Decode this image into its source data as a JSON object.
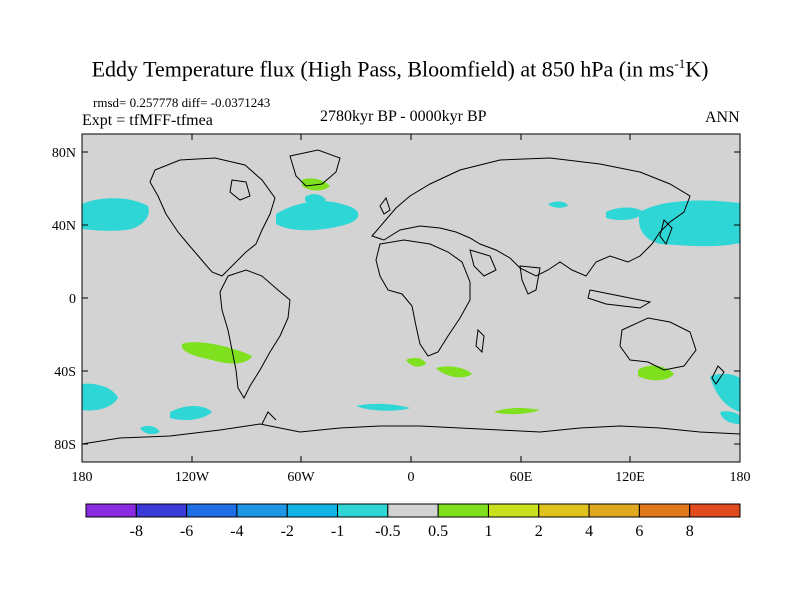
{
  "title_main": "Eddy Temperature flux (High Pass, Bloomfield) at 850 hPa (in ms",
  "title_sup": "-1",
  "title_end": "K)",
  "stats": "rmsd= 0.257778 diff= -0.0371243",
  "experiment": "Expt = tfMFF-tfmea",
  "period": "2780kyr BP - 0000kyr BP",
  "season": "ANN",
  "map": {
    "lat_labels": [
      "80N",
      "40N",
      "0",
      "40S",
      "80S"
    ],
    "lon_labels": [
      "180",
      "120W",
      "60W",
      "0",
      "60E",
      "120E",
      "180"
    ],
    "land_fill": "#d3d3d3",
    "coast_color": "#000000"
  },
  "colorbar": {
    "colors": [
      "#8a2be2",
      "#3a3ad8",
      "#1e6ee6",
      "#1e96e6",
      "#12b4e6",
      "#2fd6d6",
      "#d3d3d3",
      "#7fe01e",
      "#c8e01e",
      "#e0c21e",
      "#e0a81e",
      "#e0781e",
      "#e04a1e"
    ],
    "labels": [
      "-8",
      "-6",
      "-4",
      "-2",
      "-1",
      "-0.5",
      "0.5",
      "1",
      "2",
      "4",
      "6",
      "8"
    ]
  }
}
